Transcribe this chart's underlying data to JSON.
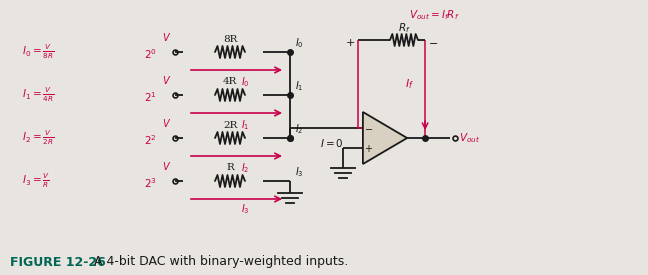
{
  "bg_color": "#e8e4df",
  "line_color": "#1a1a1a",
  "red_color": "#c8004a",
  "fig_caption_bold": "FIGURE 12-26",
  "fig_caption_rest": "   A 4-bit DAC with binary-weighted inputs.",
  "resistor_labels": [
    "8R",
    "4R",
    "2R",
    "R"
  ],
  "input_sup": [
    "0",
    "1",
    "2",
    "3"
  ],
  "current_labels_right": [
    "I₀",
    "I₁",
    "I₂",
    "I₃"
  ],
  "arrow_labels": [
    "I₀",
    "I₁",
    "I₂",
    "I₃"
  ],
  "vout_label": "V_{out} = I_f R_f",
  "rf_label": "R_f",
  "if_label": "I_f",
  "vout_out": "V_{out}",
  "i0_label": "I = 0"
}
